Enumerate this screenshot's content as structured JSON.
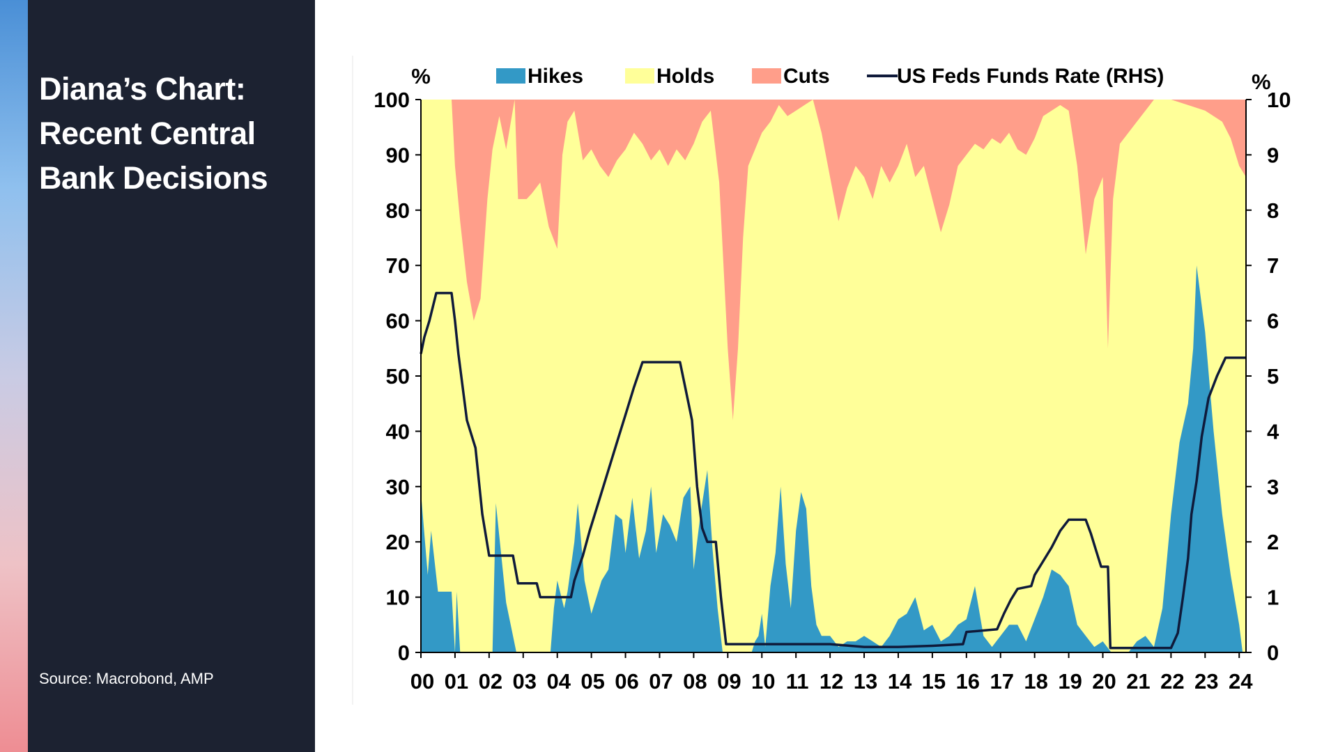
{
  "slide": {
    "title": "Diana’s Chart: Recent Central Bank Decisions",
    "source": "Source: Macrobond, AMP"
  },
  "colors": {
    "hikes": "#3399c6",
    "holds": "#ffff99",
    "cuts": "#ff9e8a",
    "rate_line": "#0f1a3a",
    "panel": "#1c2231"
  },
  "chart_data": {
    "type": "area",
    "title": "",
    "left_axis_unit": "%",
    "right_axis_unit": "%",
    "ylim": [
      0,
      100
    ],
    "ylim_right": [
      0,
      10
    ],
    "y_ticks_left": [
      "0",
      "10",
      "20",
      "30",
      "40",
      "50",
      "60",
      "70",
      "80",
      "90",
      "100"
    ],
    "y_ticks_right": [
      "0",
      "1",
      "2",
      "3",
      "4",
      "5",
      "6",
      "7",
      "8",
      "9",
      "10"
    ],
    "x_tick_labels": [
      "00",
      "01",
      "02",
      "03",
      "04",
      "05",
      "06",
      "07",
      "08",
      "09",
      "10",
      "11",
      "12",
      "13",
      "14",
      "15",
      "16",
      "17",
      "18",
      "19",
      "20",
      "21",
      "22",
      "23",
      "24"
    ],
    "xlim": [
      2000.0,
      2024.2
    ],
    "grid": false,
    "legend_position": "top",
    "legend": [
      "Hikes",
      "Holds",
      "Cuts",
      "US Feds Funds Rate (RHS)"
    ],
    "series": [
      {
        "name": "Hikes",
        "axis": "left",
        "points": [
          [
            2000.0,
            29
          ],
          [
            2000.2,
            14
          ],
          [
            2000.3,
            22
          ],
          [
            2000.5,
            11
          ],
          [
            2000.9,
            11
          ],
          [
            2001.0,
            0
          ],
          [
            2001.05,
            11
          ],
          [
            2001.15,
            0
          ],
          [
            2002.1,
            0
          ],
          [
            2002.2,
            27
          ],
          [
            2002.5,
            9
          ],
          [
            2002.8,
            0
          ],
          [
            2003.8,
            0
          ],
          [
            2003.9,
            8
          ],
          [
            2004.0,
            13
          ],
          [
            2004.2,
            8
          ],
          [
            2004.3,
            11
          ],
          [
            2004.5,
            20
          ],
          [
            2004.6,
            27
          ],
          [
            2004.8,
            13
          ],
          [
            2005.0,
            7
          ],
          [
            2005.3,
            13
          ],
          [
            2005.5,
            15
          ],
          [
            2005.7,
            25
          ],
          [
            2005.9,
            24
          ],
          [
            2006.0,
            18
          ],
          [
            2006.2,
            28
          ],
          [
            2006.4,
            17
          ],
          [
            2006.6,
            22
          ],
          [
            2006.75,
            30
          ],
          [
            2006.9,
            18
          ],
          [
            2007.1,
            25
          ],
          [
            2007.3,
            23
          ],
          [
            2007.5,
            20
          ],
          [
            2007.7,
            28
          ],
          [
            2007.9,
            30
          ],
          [
            2008.0,
            15
          ],
          [
            2008.2,
            25
          ],
          [
            2008.4,
            33
          ],
          [
            2008.55,
            19
          ],
          [
            2008.7,
            8
          ],
          [
            2008.85,
            0
          ],
          [
            2009.7,
            0
          ],
          [
            2009.8,
            2
          ],
          [
            2009.9,
            3
          ],
          [
            2010.0,
            7
          ],
          [
            2010.1,
            1
          ],
          [
            2010.25,
            12
          ],
          [
            2010.4,
            18
          ],
          [
            2010.55,
            30
          ],
          [
            2010.7,
            16
          ],
          [
            2010.85,
            8
          ],
          [
            2011.0,
            22
          ],
          [
            2011.15,
            29
          ],
          [
            2011.3,
            26
          ],
          [
            2011.45,
            12
          ],
          [
            2011.6,
            5
          ],
          [
            2011.75,
            3
          ],
          [
            2012.0,
            3
          ],
          [
            2012.25,
            1
          ],
          [
            2012.5,
            2
          ],
          [
            2012.75,
            2
          ],
          [
            2013.0,
            3
          ],
          [
            2013.25,
            2
          ],
          [
            2013.5,
            1
          ],
          [
            2013.75,
            3
          ],
          [
            2014.0,
            6
          ],
          [
            2014.25,
            7
          ],
          [
            2014.5,
            10
          ],
          [
            2014.75,
            4
          ],
          [
            2015.0,
            5
          ],
          [
            2015.25,
            2
          ],
          [
            2015.5,
            3
          ],
          [
            2015.75,
            5
          ],
          [
            2016.0,
            6
          ],
          [
            2016.25,
            12
          ],
          [
            2016.5,
            3
          ],
          [
            2016.75,
            1
          ],
          [
            2017.0,
            3
          ],
          [
            2017.25,
            5
          ],
          [
            2017.5,
            5
          ],
          [
            2017.75,
            2
          ],
          [
            2018.0,
            6
          ],
          [
            2018.25,
            10
          ],
          [
            2018.5,
            15
          ],
          [
            2018.75,
            14
          ],
          [
            2019.0,
            12
          ],
          [
            2019.25,
            5
          ],
          [
            2019.5,
            3
          ],
          [
            2019.75,
            1
          ],
          [
            2020.0,
            2
          ],
          [
            2020.25,
            0
          ],
          [
            2020.75,
            0
          ],
          [
            2021.0,
            2
          ],
          [
            2021.25,
            3
          ],
          [
            2021.5,
            1
          ],
          [
            2021.75,
            8
          ],
          [
            2022.0,
            25
          ],
          [
            2022.25,
            38
          ],
          [
            2022.5,
            45
          ],
          [
            2022.65,
            55
          ],
          [
            2022.75,
            70
          ],
          [
            2023.0,
            58
          ],
          [
            2023.25,
            40
          ],
          [
            2023.5,
            25
          ],
          [
            2023.75,
            14
          ],
          [
            2024.0,
            5
          ],
          [
            2024.1,
            0
          ]
        ]
      },
      {
        "name": "Cuts",
        "axis": "left",
        "points": [
          [
            2000.0,
            0
          ],
          [
            2000.9,
            0
          ],
          [
            2001.0,
            12
          ],
          [
            2001.15,
            22
          ],
          [
            2001.35,
            33
          ],
          [
            2001.55,
            40
          ],
          [
            2001.75,
            36
          ],
          [
            2001.95,
            18
          ],
          [
            2002.1,
            9
          ],
          [
            2002.3,
            3
          ],
          [
            2002.5,
            9
          ],
          [
            2002.75,
            0
          ],
          [
            2002.85,
            18
          ],
          [
            2003.1,
            18
          ],
          [
            2003.25,
            17
          ],
          [
            2003.5,
            15
          ],
          [
            2003.75,
            23
          ],
          [
            2004.0,
            27
          ],
          [
            2004.15,
            10
          ],
          [
            2004.3,
            4
          ],
          [
            2004.5,
            2
          ],
          [
            2004.75,
            11
          ],
          [
            2005.0,
            9
          ],
          [
            2005.25,
            12
          ],
          [
            2005.5,
            14
          ],
          [
            2005.75,
            11
          ],
          [
            2006.0,
            9
          ],
          [
            2006.25,
            6
          ],
          [
            2006.5,
            8
          ],
          [
            2006.75,
            11
          ],
          [
            2007.0,
            9
          ],
          [
            2007.25,
            12
          ],
          [
            2007.5,
            9
          ],
          [
            2007.75,
            11
          ],
          [
            2008.0,
            8
          ],
          [
            2008.25,
            4
          ],
          [
            2008.5,
            2
          ],
          [
            2008.75,
            15
          ],
          [
            2009.0,
            45
          ],
          [
            2009.15,
            58
          ],
          [
            2009.3,
            45
          ],
          [
            2009.45,
            25
          ],
          [
            2009.6,
            12
          ],
          [
            2009.8,
            9
          ],
          [
            2010.0,
            6
          ],
          [
            2010.25,
            4
          ],
          [
            2010.5,
            1
          ],
          [
            2010.75,
            3
          ],
          [
            2011.0,
            2
          ],
          [
            2011.25,
            1
          ],
          [
            2011.5,
            0
          ],
          [
            2011.75,
            6
          ],
          [
            2012.0,
            14
          ],
          [
            2012.25,
            22
          ],
          [
            2012.5,
            16
          ],
          [
            2012.75,
            12
          ],
          [
            2013.0,
            14
          ],
          [
            2013.25,
            18
          ],
          [
            2013.5,
            12
          ],
          [
            2013.75,
            15
          ],
          [
            2014.0,
            12
          ],
          [
            2014.25,
            8
          ],
          [
            2014.5,
            14
          ],
          [
            2014.75,
            12
          ],
          [
            2015.0,
            18
          ],
          [
            2015.25,
            24
          ],
          [
            2015.5,
            19
          ],
          [
            2015.75,
            12
          ],
          [
            2016.0,
            10
          ],
          [
            2016.25,
            8
          ],
          [
            2016.5,
            9
          ],
          [
            2016.75,
            7
          ],
          [
            2017.0,
            8
          ],
          [
            2017.25,
            6
          ],
          [
            2017.5,
            9
          ],
          [
            2017.75,
            10
          ],
          [
            2018.0,
            7
          ],
          [
            2018.25,
            3
          ],
          [
            2018.5,
            2
          ],
          [
            2018.75,
            1
          ],
          [
            2019.0,
            2
          ],
          [
            2019.25,
            12
          ],
          [
            2019.5,
            28
          ],
          [
            2019.75,
            18
          ],
          [
            2020.0,
            14
          ],
          [
            2020.15,
            45
          ],
          [
            2020.3,
            18
          ],
          [
            2020.5,
            8
          ],
          [
            2020.75,
            6
          ],
          [
            2021.0,
            4
          ],
          [
            2021.25,
            2
          ],
          [
            2021.5,
            0
          ],
          [
            2022.0,
            0
          ],
          [
            2022.5,
            1
          ],
          [
            2023.0,
            2
          ],
          [
            2023.5,
            4
          ],
          [
            2023.75,
            7
          ],
          [
            2024.0,
            12
          ],
          [
            2024.2,
            14
          ]
        ]
      },
      {
        "name": "US Feds Funds Rate (RHS)",
        "axis": "right",
        "points": [
          [
            2000.0,
            5.4
          ],
          [
            2000.1,
            5.7
          ],
          [
            2000.25,
            6.0
          ],
          [
            2000.45,
            6.5
          ],
          [
            2000.9,
            6.5
          ],
          [
            2001.0,
            6.0
          ],
          [
            2001.1,
            5.4
          ],
          [
            2001.35,
            4.2
          ],
          [
            2001.6,
            3.7
          ],
          [
            2001.8,
            2.5
          ],
          [
            2002.0,
            1.75
          ],
          [
            2002.7,
            1.75
          ],
          [
            2002.85,
            1.25
          ],
          [
            2003.4,
            1.25
          ],
          [
            2003.5,
            1.0
          ],
          [
            2004.4,
            1.0
          ],
          [
            2004.5,
            1.3
          ],
          [
            2004.75,
            1.75
          ],
          [
            2004.95,
            2.2
          ],
          [
            2005.25,
            2.8
          ],
          [
            2005.5,
            3.3
          ],
          [
            2005.75,
            3.8
          ],
          [
            2006.0,
            4.3
          ],
          [
            2006.25,
            4.8
          ],
          [
            2006.5,
            5.25
          ],
          [
            2007.6,
            5.25
          ],
          [
            2007.75,
            4.8
          ],
          [
            2007.95,
            4.2
          ],
          [
            2008.1,
            3.0
          ],
          [
            2008.25,
            2.25
          ],
          [
            2008.4,
            2.0
          ],
          [
            2008.65,
            2.0
          ],
          [
            2008.8,
            1.0
          ],
          [
            2008.95,
            0.15
          ],
          [
            2010.0,
            0.15
          ],
          [
            2012.0,
            0.15
          ],
          [
            2013.0,
            0.1
          ],
          [
            2014.0,
            0.1
          ],
          [
            2015.0,
            0.12
          ],
          [
            2015.9,
            0.15
          ],
          [
            2016.0,
            0.37
          ],
          [
            2016.9,
            0.42
          ],
          [
            2017.1,
            0.7
          ],
          [
            2017.3,
            0.95
          ],
          [
            2017.5,
            1.15
          ],
          [
            2017.9,
            1.2
          ],
          [
            2018.0,
            1.4
          ],
          [
            2018.25,
            1.65
          ],
          [
            2018.5,
            1.9
          ],
          [
            2018.75,
            2.2
          ],
          [
            2019.0,
            2.4
          ],
          [
            2019.5,
            2.4
          ],
          [
            2019.65,
            2.15
          ],
          [
            2019.8,
            1.85
          ],
          [
            2019.95,
            1.55
          ],
          [
            2020.15,
            1.55
          ],
          [
            2020.22,
            0.08
          ],
          [
            2021.0,
            0.08
          ],
          [
            2022.0,
            0.08
          ],
          [
            2022.2,
            0.35
          ],
          [
            2022.35,
            1.0
          ],
          [
            2022.5,
            1.7
          ],
          [
            2022.6,
            2.5
          ],
          [
            2022.75,
            3.1
          ],
          [
            2022.9,
            3.9
          ],
          [
            2023.1,
            4.6
          ],
          [
            2023.35,
            5.0
          ],
          [
            2023.6,
            5.33
          ],
          [
            2024.2,
            5.33
          ]
        ]
      }
    ]
  }
}
